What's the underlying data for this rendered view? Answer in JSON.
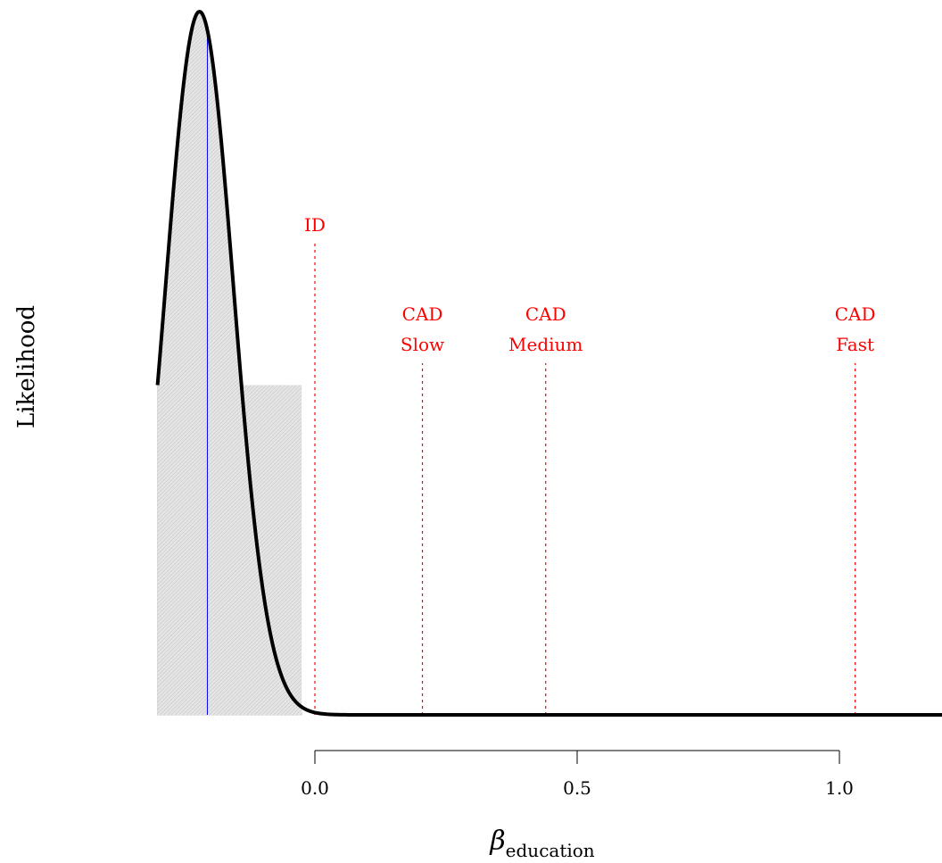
{
  "chart_data": {
    "type": "area",
    "title": "",
    "xlabel_symbol": "β",
    "xlabel_subscript": "education",
    "ylabel": "Likelihood",
    "xlim": [
      -0.3,
      1.2
    ],
    "ylim": [
      0,
      1
    ],
    "xticks": [
      0.0,
      0.5,
      1.0
    ],
    "xtick_labels": [
      "0.0",
      "0.5",
      "1.0"
    ],
    "grid": false,
    "series": [
      {
        "x": [
          -0.3,
          -0.28,
          -0.26,
          -0.24,
          -0.22,
          -0.2,
          -0.18,
          -0.16,
          -0.14,
          -0.12,
          -0.1,
          -0.08,
          -0.06,
          -0.04,
          -0.02,
          0.0,
          0.02,
          0.05,
          0.08,
          0.12,
          0.16,
          0.2,
          0.3,
          0.5,
          0.8,
          1.2
        ],
        "y": [
          0.55,
          0.71,
          0.86,
          0.96,
          1.0,
          0.96,
          0.86,
          0.71,
          0.55,
          0.39,
          0.25,
          0.15,
          0.083,
          0.041,
          0.018,
          0.009,
          0.004,
          0.002,
          0.001,
          0.0,
          0.0,
          0.0,
          0.0,
          0.0,
          0.0,
          0.0
        ]
      }
    ],
    "shaded_interval": [
      -0.3,
      -0.025
    ],
    "estimate_line": {
      "x": -0.205,
      "color": "#0000ff"
    },
    "reference_lines": [
      {
        "label": [
          "ID"
        ],
        "x": 0.0,
        "top": 0.67
      },
      {
        "label": [
          "CAD",
          "Slow"
        ],
        "x": 0.205,
        "top": 0.5
      },
      {
        "label": [
          "CAD",
          "Medium"
        ],
        "x": 0.44,
        "top": 0.5
      },
      {
        "label": [
          "CAD",
          "Fast"
        ],
        "x": 1.03,
        "top": 0.5
      }
    ],
    "colors": {
      "curve": "#000000",
      "reference": "#ff0000",
      "shade": "#d3d3d3",
      "estimate": "#0000ff"
    }
  }
}
